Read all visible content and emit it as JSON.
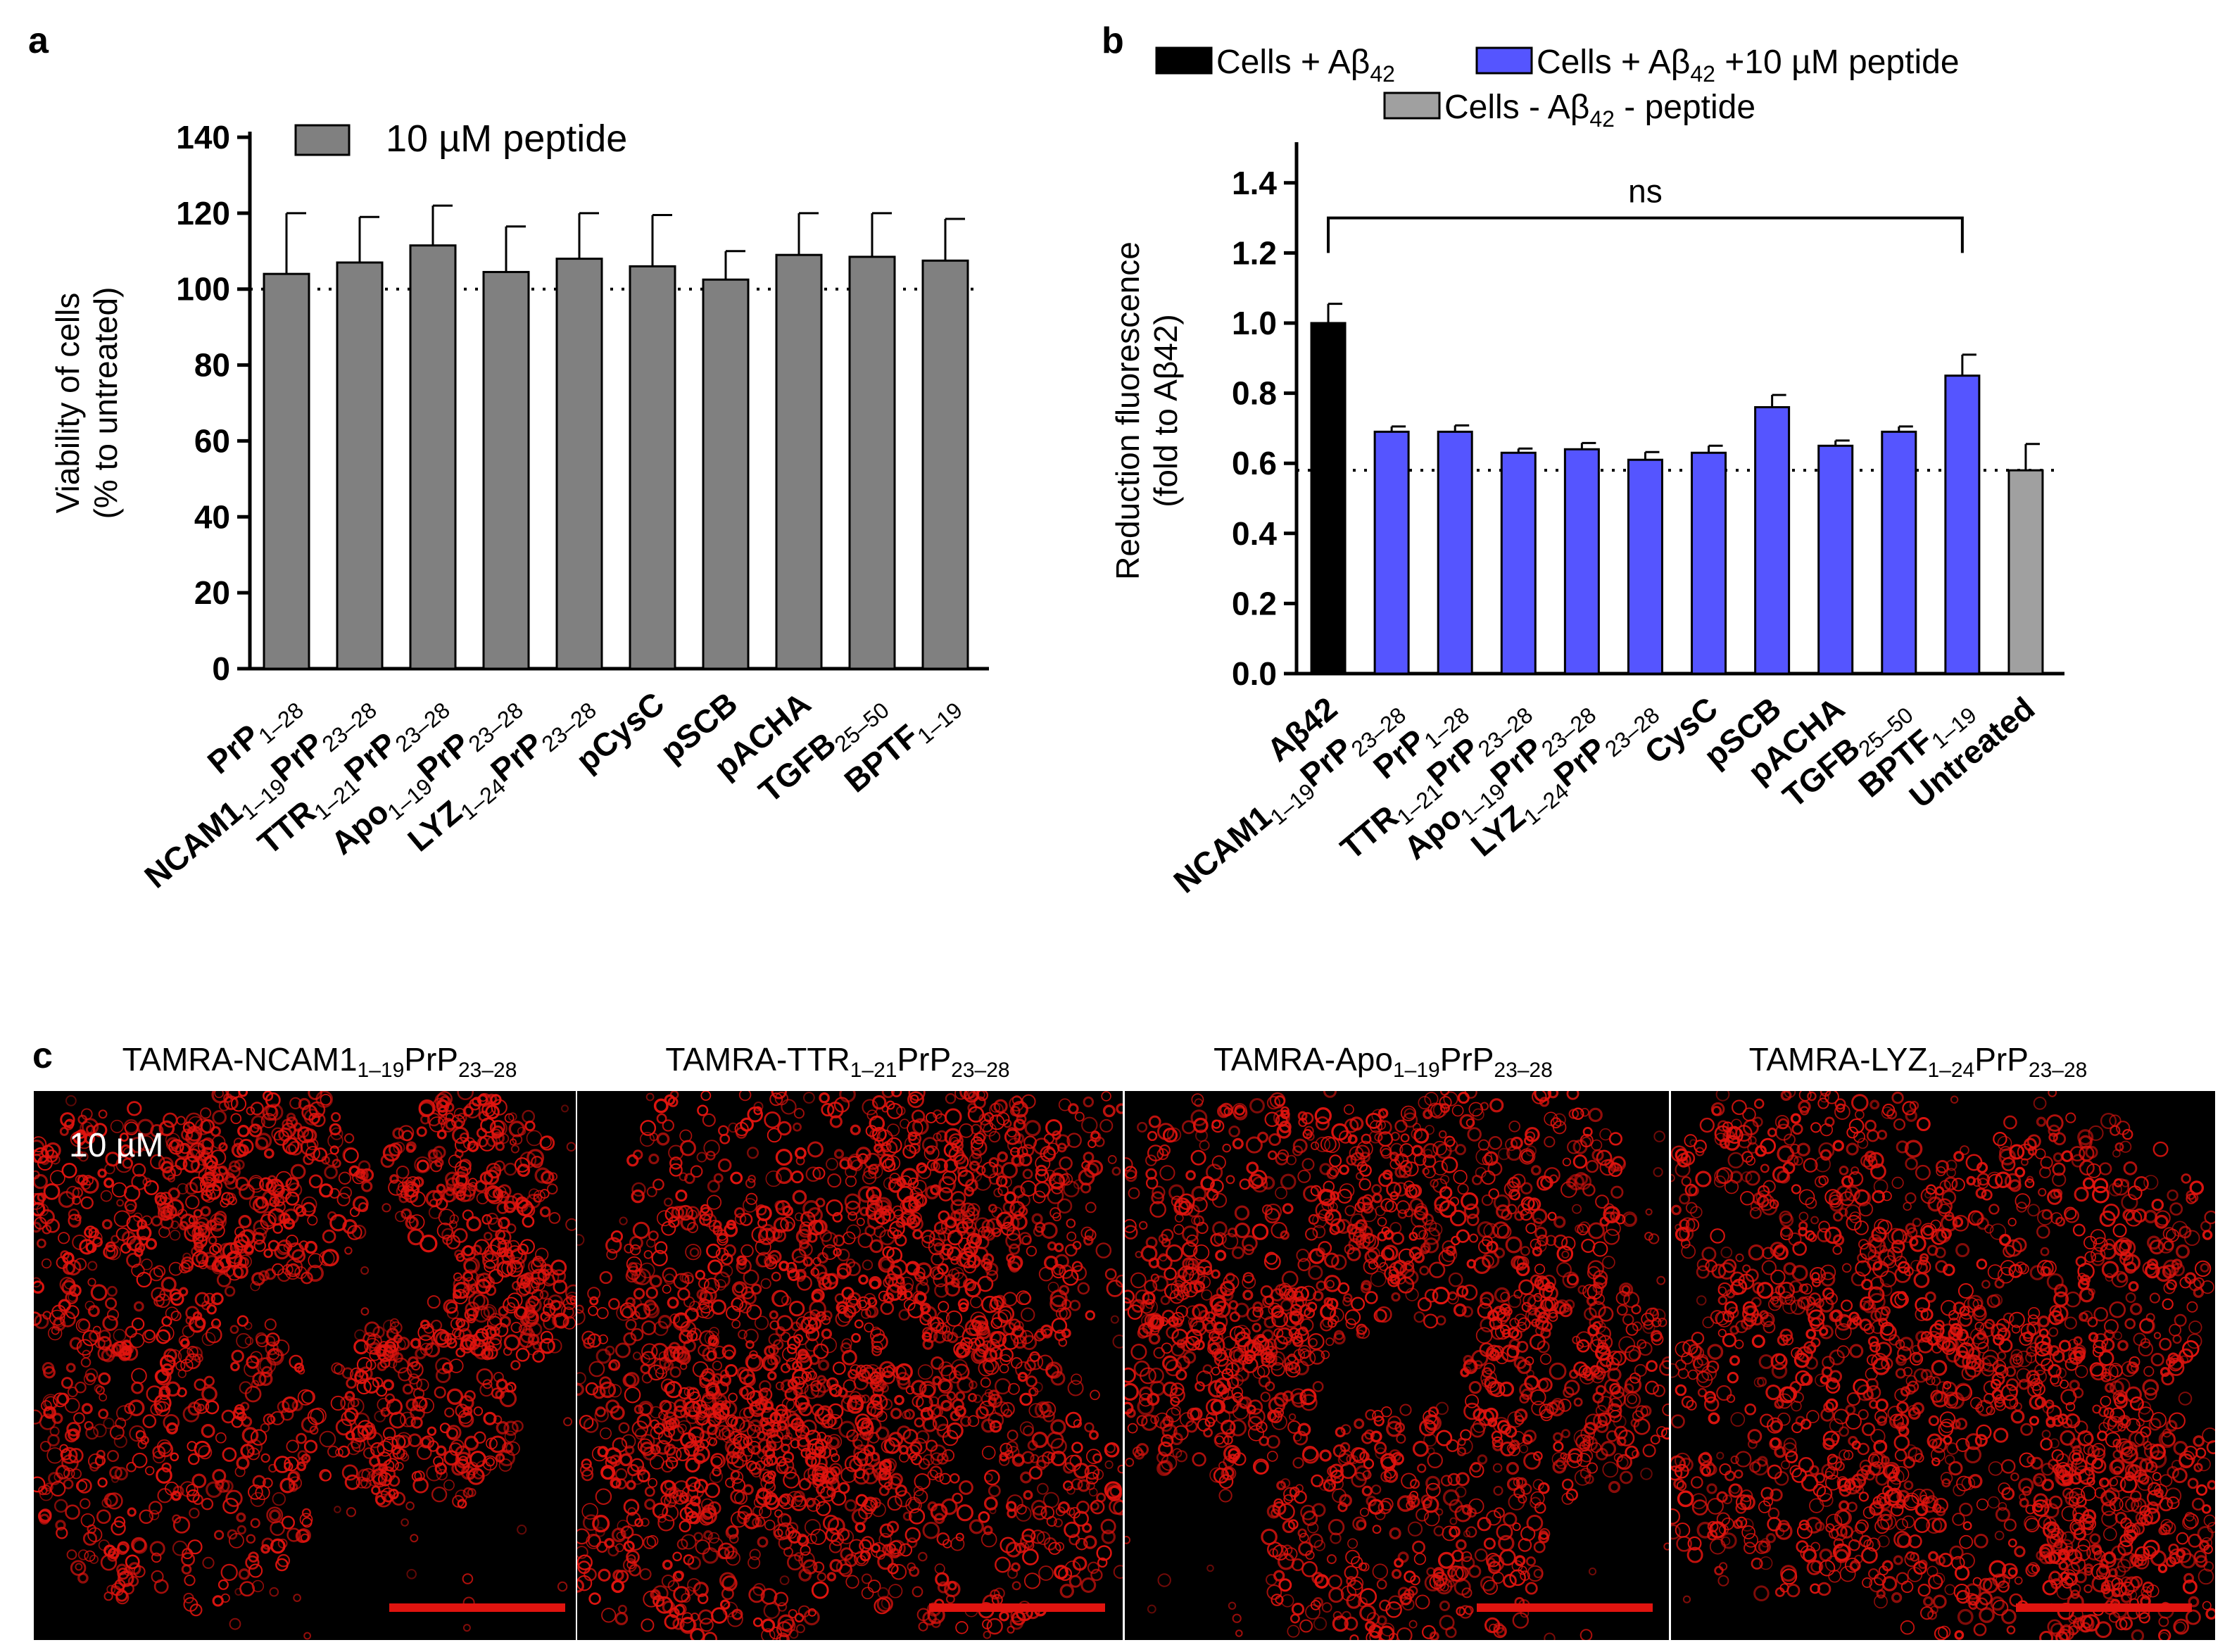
{
  "panels": {
    "a_letter": "a",
    "b_letter": "b",
    "c_letter": "c"
  },
  "chart_data": [
    {
      "id": "a",
      "type": "bar",
      "title": "",
      "xlabel": "",
      "ylabel": [
        "Viability of cells",
        "(% to untreated)"
      ],
      "ylim": [
        0,
        140
      ],
      "yticks": [
        "0",
        "20",
        "40",
        "60",
        "80",
        "100",
        "120",
        "140"
      ],
      "reference_line": 100,
      "legend": [
        {
          "label": "10 µM peptide",
          "color": "#808080"
        }
      ],
      "legend_position": "top",
      "categories": [
        {
          "main": "PrP",
          "sub": "1–28",
          "mainB": "",
          "subB": ""
        },
        {
          "main": "NCAM1",
          "sub": "1–19",
          "mainB": "PrP",
          "subB": "23–28"
        },
        {
          "main": "TTR",
          "sub": "1–21",
          "mainB": "PrP",
          "subB": "23–28"
        },
        {
          "main": "Apo",
          "sub": "1–19",
          "mainB": "PrP",
          "subB": "23–28"
        },
        {
          "main": "LYZ",
          "sub": "1–24",
          "mainB": "PrP",
          "subB": "23–28"
        },
        {
          "main": "pCysC",
          "sub": "",
          "mainB": "",
          "subB": ""
        },
        {
          "main": "pSCB",
          "sub": "",
          "mainB": "",
          "subB": ""
        },
        {
          "main": "pACHA",
          "sub": "",
          "mainB": "",
          "subB": ""
        },
        {
          "main": "TGFB",
          "sub": "25–50",
          "mainB": "",
          "subB": ""
        },
        {
          "main": "BPTF",
          "sub": "1–19",
          "mainB": "",
          "subB": ""
        }
      ],
      "series": [
        {
          "name": "10 µM peptide",
          "color": "#808080",
          "values": [
            104,
            107,
            111.5,
            104.5,
            108,
            106,
            102.5,
            109,
            108.5,
            107.5
          ],
          "errors": [
            16,
            12,
            10.5,
            12,
            12,
            13.5,
            7.5,
            11,
            11.5,
            11
          ]
        }
      ]
    },
    {
      "id": "b",
      "type": "bar",
      "title": "",
      "xlabel": "",
      "ylabel": [
        "Reduction fluorescence",
        "(fold to Aβ42)"
      ],
      "ylim": [
        0,
        1.5
      ],
      "yticks": [
        "0.0",
        "0.2",
        "0.4",
        "0.6",
        "0.8",
        "1.0",
        "1.2",
        "1.4"
      ],
      "reference_line": 0.58,
      "annotation": "ns",
      "legend": [
        {
          "label": "Cells + Aβ",
          "sub": "42",
          "extra": "",
          "color": "#000000"
        },
        {
          "label": "Cells + Aβ",
          "sub": "42",
          "extra": " +10 µM peptide",
          "color": "#5555ff"
        },
        {
          "label": "Cells - Aβ",
          "sub": "42",
          "extra": " - peptide",
          "color": "#a0a0a0"
        }
      ],
      "legend_position": "top",
      "categories": [
        {
          "main": "Aβ42",
          "sub": "",
          "mainB": "",
          "subB": ""
        },
        {
          "main": "NCAM1",
          "sub": "1–19",
          "mainB": "PrP",
          "subB": "23–28"
        },
        {
          "main": "PrP",
          "sub": "1–28",
          "mainB": "",
          "subB": ""
        },
        {
          "main": "TTR",
          "sub": "1–21",
          "mainB": "PrP",
          "subB": "23–28"
        },
        {
          "main": "Apo",
          "sub": "1–19",
          "mainB": "PrP",
          "subB": "23–28"
        },
        {
          "main": "LYZ",
          "sub": "1–24",
          "mainB": "PrP",
          "subB": "23–28"
        },
        {
          "main": "CysC",
          "sub": "",
          "mainB": "",
          "subB": ""
        },
        {
          "main": "pSCB",
          "sub": "",
          "mainB": "",
          "subB": ""
        },
        {
          "main": "pACHA",
          "sub": "",
          "mainB": "",
          "subB": ""
        },
        {
          "main": "TGFB",
          "sub": "25–50",
          "mainB": "",
          "subB": ""
        },
        {
          "main": "BPTF",
          "sub": "1–19",
          "mainB": "",
          "subB": ""
        },
        {
          "main": "Untreated",
          "sub": "",
          "mainB": "",
          "subB": ""
        }
      ],
      "series": [
        {
          "name": "fold to Aβ42",
          "values": [
            1.0,
            0.69,
            0.69,
            0.63,
            0.64,
            0.61,
            0.63,
            0.76,
            0.65,
            0.69,
            0.85,
            0.58
          ],
          "errors": [
            0.055,
            0.015,
            0.018,
            0.012,
            0.018,
            0.022,
            0.02,
            0.035,
            0.015,
            0.015,
            0.06,
            0.075
          ],
          "colors": [
            "#000000",
            "#5555ff",
            "#5555ff",
            "#5555ff",
            "#5555ff",
            "#5555ff",
            "#5555ff",
            "#5555ff",
            "#5555ff",
            "#5555ff",
            "#5555ff",
            "#a0a0a0"
          ]
        }
      ]
    }
  ],
  "microscopy": {
    "concentration_label": "10 µM",
    "images": [
      {
        "prefix": "TAMRA-",
        "core": "NCAM1",
        "sub1": "1–19",
        "mid": "PrP",
        "sub2": "23–28"
      },
      {
        "prefix": "TAMRA-",
        "core": "TTR",
        "sub1": "1–21",
        "mid": "PrP",
        "sub2": "23–28"
      },
      {
        "prefix": "TAMRA-",
        "core": "Apo",
        "sub1": "1–19",
        "mid": "PrP",
        "sub2": "23–28"
      },
      {
        "prefix": "TAMRA-",
        "core": "LYZ",
        "sub1": "1–24",
        "mid": "PrP",
        "sub2": "23–28"
      }
    ],
    "fluorescence_color": "#e0140f"
  }
}
